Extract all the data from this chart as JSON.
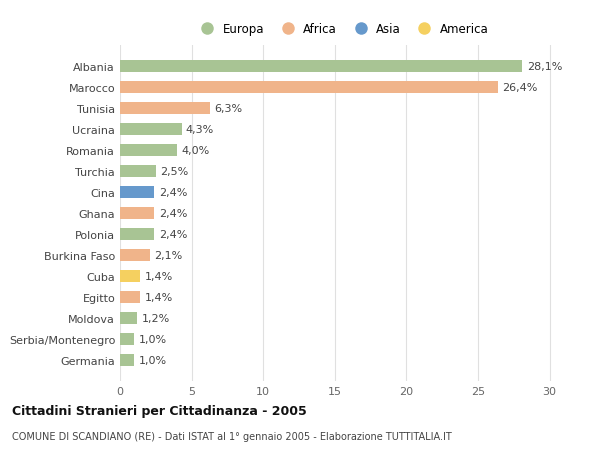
{
  "countries": [
    "Albania",
    "Marocco",
    "Tunisia",
    "Ucraina",
    "Romania",
    "Turchia",
    "Cina",
    "Ghana",
    "Polonia",
    "Burkina Faso",
    "Cuba",
    "Egitto",
    "Moldova",
    "Serbia/Montenegro",
    "Germania"
  ],
  "values": [
    28.1,
    26.4,
    6.3,
    4.3,
    4.0,
    2.5,
    2.4,
    2.4,
    2.4,
    2.1,
    1.4,
    1.4,
    1.2,
    1.0,
    1.0
  ],
  "labels": [
    "28,1%",
    "26,4%",
    "6,3%",
    "4,3%",
    "4,0%",
    "2,5%",
    "2,4%",
    "2,4%",
    "2,4%",
    "2,1%",
    "1,4%",
    "1,4%",
    "1,2%",
    "1,0%",
    "1,0%"
  ],
  "continents": [
    "Europa",
    "Africa",
    "Africa",
    "Europa",
    "Europa",
    "Europa",
    "Asia",
    "Africa",
    "Europa",
    "Africa",
    "America",
    "Africa",
    "Europa",
    "Europa",
    "Europa"
  ],
  "colors": {
    "Europa": "#a8c494",
    "Africa": "#f0b48a",
    "Asia": "#6699cc",
    "America": "#f5d060"
  },
  "xlim": [
    0,
    31
  ],
  "xticks": [
    0,
    5,
    10,
    15,
    20,
    25,
    30
  ],
  "title": "Cittadini Stranieri per Cittadinanza - 2005",
  "subtitle": "COMUNE DI SCANDIANO (RE) - Dati ISTAT al 1° gennaio 2005 - Elaborazione TUTTITALIA.IT",
  "background_color": "#ffffff",
  "grid_color": "#e0e0e0",
  "bar_height": 0.55,
  "label_fontsize": 8,
  "ytick_fontsize": 8,
  "xtick_fontsize": 8,
  "legend_order": [
    "Europa",
    "Africa",
    "Asia",
    "America"
  ]
}
